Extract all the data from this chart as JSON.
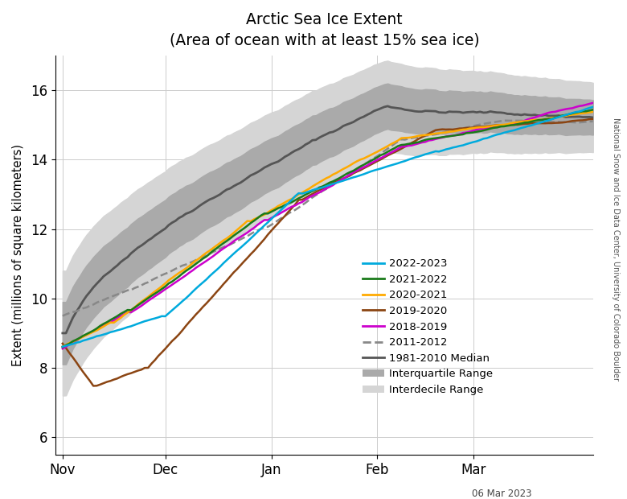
{
  "title_line1": "Arctic Sea Ice Extent",
  "title_line2": "(Area of ocean with at least 15% sea ice)",
  "ylabel": "Extent (millions of square kilometers)",
  "watermark": "National Snow and Ice Data Center, University of Colorado Boulder",
  "date_label": "06 Mar 2023",
  "ylim": [
    5.5,
    17.0
  ],
  "yticks": [
    6,
    8,
    10,
    12,
    14,
    16
  ],
  "n_days": 156,
  "month_positions": [
    0,
    30,
    61,
    92,
    120
  ],
  "month_labels": [
    "Nov",
    "Dec",
    "Jan",
    "Feb",
    "Mar"
  ],
  "background_color": "#ffffff",
  "grid_color": "#cccccc",
  "median_color": "#555555",
  "iqr_color": "#aaaaaa",
  "idecile_color": "#d5d5d5",
  "series_colors": {
    "2022-2023": "#00aadd",
    "2021-2022": "#1a7a1a",
    "2020-2021": "#ffaa00",
    "2019-2020": "#8b4513",
    "2018-2019": "#cc00cc",
    "2011-2012": "#888888"
  },
  "series_dashes": {
    "2022-2023": "solid",
    "2021-2022": "solid",
    "2020-2021": "solid",
    "2019-2020": "solid",
    "2018-2019": "solid",
    "2011-2012": "dashed"
  }
}
